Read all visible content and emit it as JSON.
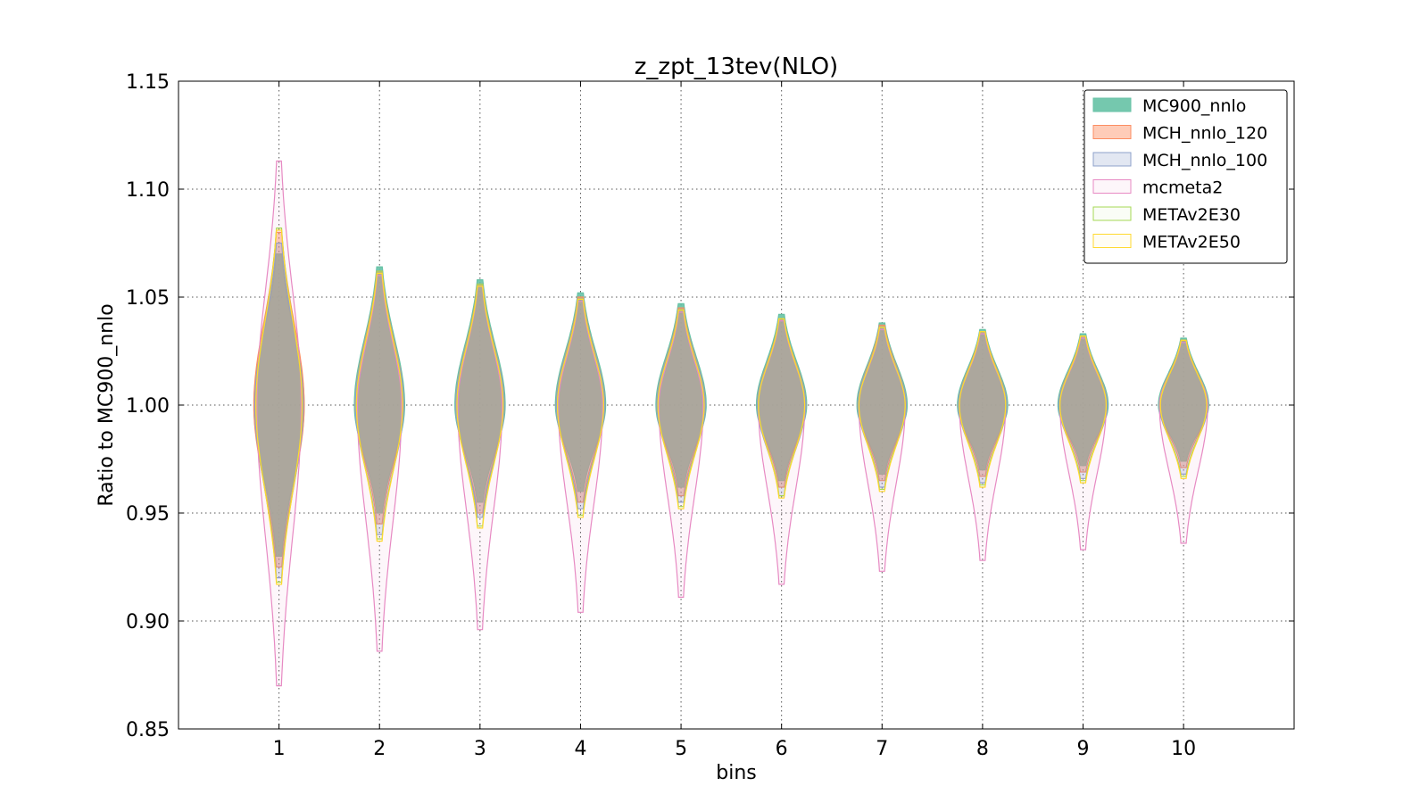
{
  "chart_data": {
    "type": "violin",
    "title": "z_zpt_13tev(NLO)",
    "xlabel": "bins",
    "ylabel": "Ratio to MC900_nnlo",
    "ylim": [
      0.85,
      1.15
    ],
    "xlim": [
      0,
      11.1
    ],
    "yticks": [
      "0.85",
      "0.90",
      "0.95",
      "1.00",
      "1.05",
      "1.10",
      "1.15"
    ],
    "categories": [
      "1",
      "2",
      "3",
      "4",
      "5",
      "6",
      "7",
      "8",
      "9",
      "10"
    ],
    "grid": true,
    "legend_position": "top-right",
    "series": [
      {
        "name": "MC900_nnlo",
        "fill": "#66c2a5",
        "stroke": "#66c2a5",
        "fill_opacity": 0.9,
        "min": [
          0.93,
          0.95,
          0.955,
          0.96,
          0.962,
          0.965,
          0.968,
          0.97,
          0.972,
          0.974
        ],
        "max": [
          1.07,
          1.064,
          1.058,
          1.052,
          1.047,
          1.042,
          1.038,
          1.035,
          1.033,
          1.031
        ],
        "half_width": [
          0.25,
          0.25,
          0.25,
          0.25,
          0.25,
          0.25,
          0.25,
          0.25,
          0.25,
          0.25
        ]
      },
      {
        "name": "MCH_nnlo_120",
        "fill": "#fc8d62",
        "stroke": "#fc8d62",
        "fill_opacity": 0.45,
        "min": [
          0.925,
          0.945,
          0.95,
          0.955,
          0.958,
          0.962,
          0.965,
          0.967,
          0.969,
          0.971
        ],
        "max": [
          1.08,
          1.062,
          1.056,
          1.05,
          1.045,
          1.04,
          1.037,
          1.034,
          1.032,
          1.03
        ],
        "half_width": [
          0.25,
          0.24,
          0.24,
          0.24,
          0.24,
          0.24,
          0.24,
          0.24,
          0.24,
          0.24
        ]
      },
      {
        "name": "MCH_nnlo_100",
        "fill": "#8da0cb",
        "stroke": "#8da0cb",
        "fill_opacity": 0.25,
        "min": [
          0.92,
          0.94,
          0.948,
          0.952,
          0.955,
          0.958,
          0.962,
          0.964,
          0.966,
          0.968
        ],
        "max": [
          1.075,
          1.06,
          1.055,
          1.049,
          1.044,
          1.039,
          1.036,
          1.033,
          1.031,
          1.029
        ],
        "half_width": [
          0.24,
          0.24,
          0.24,
          0.24,
          0.24,
          0.24,
          0.24,
          0.24,
          0.24,
          0.24
        ]
      },
      {
        "name": "mcmeta2",
        "fill": "#e78ac3",
        "stroke": "#e78ac3",
        "fill_opacity": 0.08,
        "min": [
          0.87,
          0.886,
          0.896,
          0.904,
          0.911,
          0.917,
          0.923,
          0.928,
          0.933,
          0.936
        ],
        "max": [
          1.113,
          1.06,
          1.055,
          1.048,
          1.043,
          1.039,
          1.035,
          1.033,
          1.031,
          1.029
        ],
        "half_width": [
          0.22,
          0.22,
          0.22,
          0.22,
          0.22,
          0.23,
          0.23,
          0.23,
          0.23,
          0.24
        ]
      },
      {
        "name": "METAv2E30",
        "fill": "#a6d854",
        "stroke": "#a6d854",
        "fill_opacity": 0.0,
        "min": [
          0.918,
          0.938,
          0.944,
          0.949,
          0.953,
          0.958,
          0.961,
          0.963,
          0.965,
          0.967
        ],
        "max": [
          1.082,
          1.062,
          1.056,
          1.049,
          1.044,
          1.04,
          1.036,
          1.034,
          1.032,
          1.03
        ],
        "half_width": [
          0.23,
          0.23,
          0.23,
          0.23,
          0.23,
          0.23,
          0.23,
          0.23,
          0.23,
          0.23
        ]
      },
      {
        "name": "METAv2E50",
        "fill": "#ffd92f",
        "stroke": "#ffd92f",
        "fill_opacity": 0.0,
        "min": [
          0.917,
          0.937,
          0.943,
          0.948,
          0.952,
          0.957,
          0.96,
          0.962,
          0.964,
          0.966
        ],
        "max": [
          1.081,
          1.061,
          1.055,
          1.049,
          1.044,
          1.04,
          1.036,
          1.034,
          1.032,
          1.03
        ],
        "half_width": [
          0.23,
          0.23,
          0.23,
          0.23,
          0.23,
          0.23,
          0.23,
          0.23,
          0.23,
          0.23
        ]
      }
    ]
  }
}
